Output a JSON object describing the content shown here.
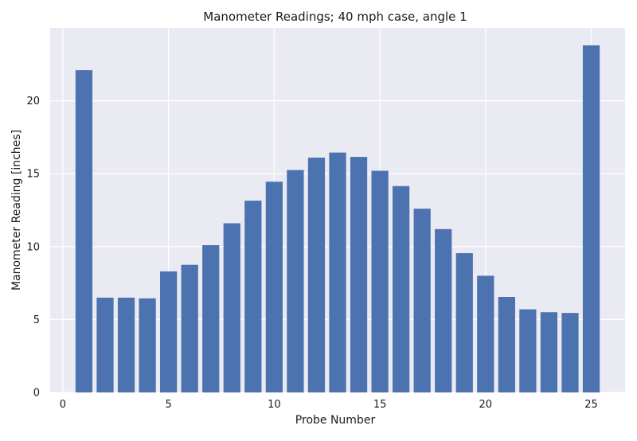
{
  "chart_data": {
    "type": "bar",
    "title": "Manometer Readings; 40 mph case, angle 1",
    "xlabel": "Probe Number",
    "ylabel": "Manometer Reading [inches]",
    "x": [
      1,
      2,
      3,
      4,
      5,
      6,
      7,
      8,
      9,
      10,
      11,
      12,
      13,
      14,
      15,
      16,
      17,
      18,
      19,
      20,
      21,
      22,
      23,
      24,
      25
    ],
    "values": [
      22.1,
      6.5,
      6.5,
      6.45,
      8.3,
      8.75,
      10.1,
      11.6,
      13.15,
      14.45,
      15.25,
      16.1,
      16.45,
      16.15,
      15.2,
      14.15,
      12.6,
      11.2,
      9.55,
      8.0,
      6.55,
      5.7,
      5.5,
      5.45,
      23.8
    ],
    "xlim": [
      -0.6,
      26.6
    ],
    "ylim": [
      0,
      25.0
    ],
    "xticks": [
      0,
      5,
      10,
      15,
      20,
      25
    ],
    "yticks": [
      0,
      5,
      10,
      15,
      20
    ],
    "grid": true,
    "colors": {
      "bar": "#4C72B0",
      "plot_background": "#EAEAF2",
      "grid": "#FFFFFF"
    }
  }
}
